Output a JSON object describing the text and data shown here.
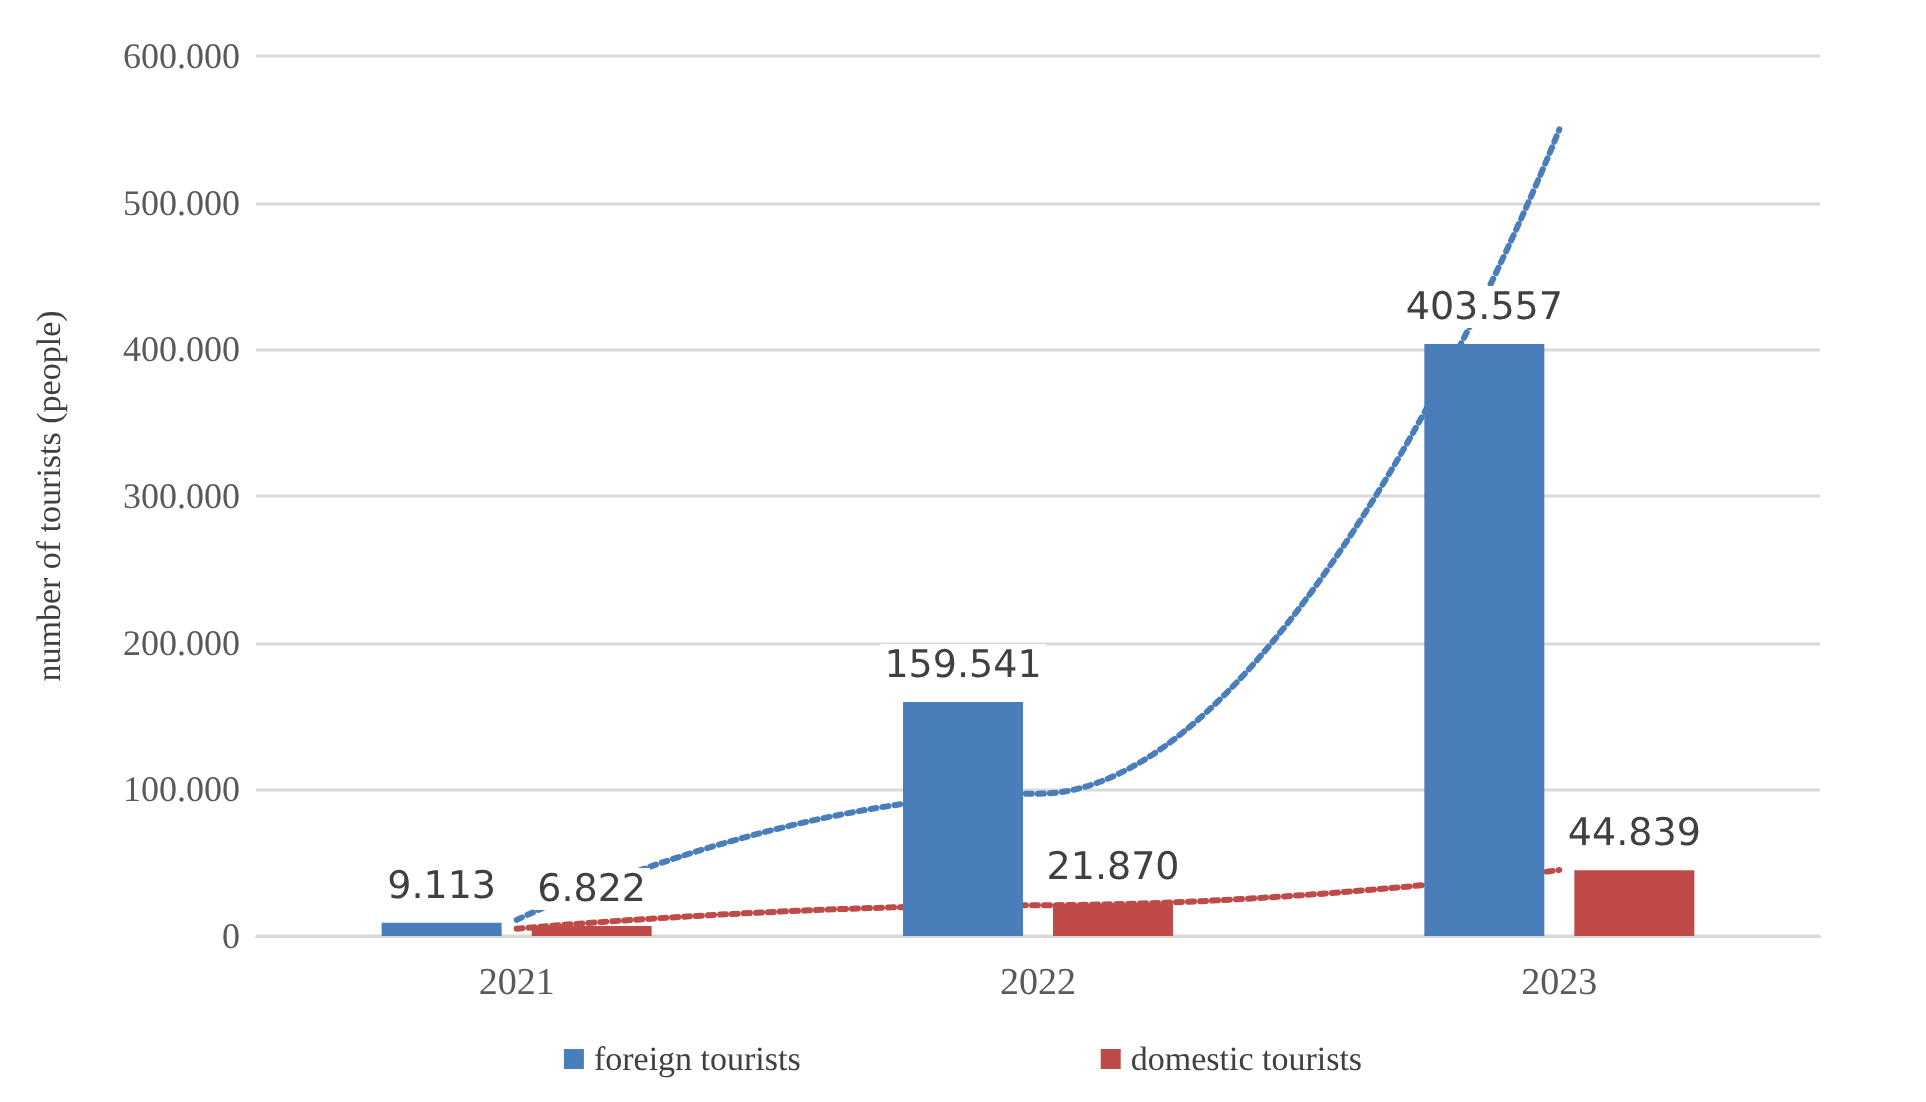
{
  "chart_data": {
    "type": "bar",
    "ylabel": "number of tourists (people)",
    "categories": [
      "2021",
      "2022",
      "2023"
    ],
    "series": [
      {
        "name": "foreign tourists",
        "color": "#4a7ebb",
        "values": [
          9113,
          159541,
          403557
        ],
        "value_labels": [
          "9.113",
          "159.541",
          "403.557"
        ]
      },
      {
        "name": "domestic tourists",
        "color": "#be4b48",
        "values": [
          6822,
          21870,
          44839
        ],
        "value_labels": [
          "6.822",
          "21.870",
          "44.839"
        ]
      },
      {
        "type": "line",
        "color": "#4a7ebb",
        "line_style": "dotted",
        "marker": "none",
        "values": [
          11000,
          97000,
          550000
        ]
      },
      {
        "type": "line",
        "color": "#be4b48",
        "line_style": "dotted",
        "marker": "none",
        "values": [
          5000,
          21000,
          45000
        ]
      }
    ],
    "ylim": [
      0,
      600000
    ],
    "yticks": [
      {
        "value": 0,
        "label": "0"
      },
      {
        "value": 100000,
        "label": "100.000"
      },
      {
        "value": 200000,
        "label": "200.000"
      },
      {
        "value": 300000,
        "label": "300.000"
      },
      {
        "value": 400000,
        "label": "400.000"
      },
      {
        "value": 500000,
        "label": "500.000"
      },
      {
        "value": 600000,
        "label": "600.000"
      }
    ],
    "grid": "y",
    "legend": "bottom"
  }
}
